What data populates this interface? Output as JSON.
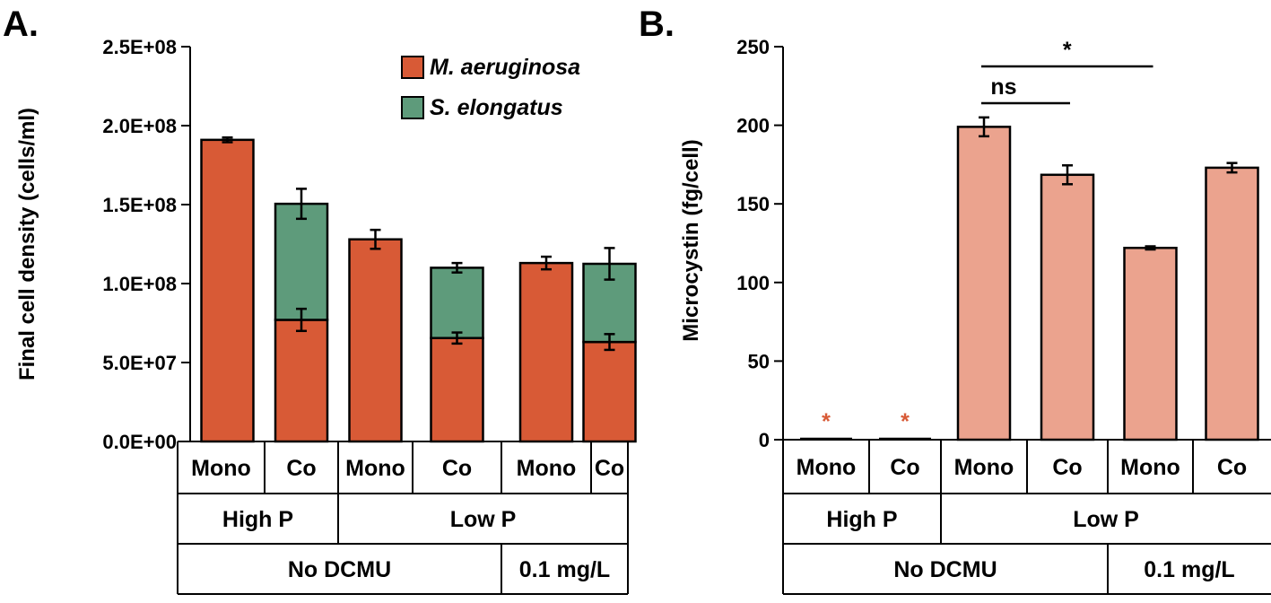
{
  "chart_data": [
    {
      "panel": "A.",
      "type": "stacked_bar",
      "ylabel": "Final cell density (cells/ml)",
      "ylim": [
        0,
        250000000
      ],
      "yticks": [
        0,
        50000000,
        100000000,
        150000000,
        200000000,
        250000000
      ],
      "ytick_labels": [
        "0.0E+00",
        "5.0E+07",
        "1.0E+08",
        "1.5E+08",
        "2.0E+08",
        "2.5E+08"
      ],
      "categories": [
        "Mono",
        "Co",
        "Mono",
        "Co",
        "Mono",
        "Co"
      ],
      "group_rows": [
        [
          {
            "label": "High P",
            "span": 2
          },
          {
            "label": "Low P",
            "span": 4
          }
        ],
        [
          {
            "label": "No DCMU",
            "span": 4
          },
          {
            "label": "0.1 mg/L",
            "span": 2
          }
        ]
      ],
      "series": [
        {
          "name": "M. aeruginosa",
          "color": "#d85a36",
          "values": [
            191000000,
            77000000,
            128000000,
            65500000,
            113000000,
            63000000
          ],
          "errors": [
            1500000,
            7000000,
            6000000,
            3500000,
            4000000,
            5000000
          ]
        },
        {
          "name": "S. elongatus",
          "color": "#5e9b7b",
          "values": [
            0,
            73500000,
            0,
            44500000,
            0,
            49500000
          ],
          "errors": [
            0,
            9500000,
            0,
            3000000,
            0,
            10000000
          ]
        }
      ]
    },
    {
      "panel": "B.",
      "type": "bar",
      "ylabel": "Microcystin (fg/cell)",
      "ylim": [
        0,
        250
      ],
      "yticks": [
        0,
        50,
        100,
        150,
        200,
        250
      ],
      "ytick_labels": [
        "0",
        "50",
        "100",
        "150",
        "200",
        "250"
      ],
      "categories": [
        "Mono",
        "Co",
        "Mono",
        "Co",
        "Mono",
        "Co"
      ],
      "group_rows": [
        [
          {
            "label": "High P",
            "span": 2
          },
          {
            "label": "Low P",
            "span": 4
          }
        ],
        [
          {
            "label": "No DCMU",
            "span": 4
          },
          {
            "label": "0.1 mg/L",
            "span": 2
          }
        ]
      ],
      "series": [
        {
          "name": "Microcystin",
          "color": "#eba38e",
          "values": [
            0,
            0,
            199,
            168.5,
            122,
            173
          ],
          "errors": [
            0,
            0,
            6,
            6,
            1,
            3
          ]
        }
      ],
      "below_detection_markers": [
        {
          "index": 0,
          "label": "*"
        },
        {
          "index": 1,
          "label": "*"
        }
      ],
      "marker_color": "#d85a36",
      "significance": [
        {
          "from": 2,
          "to": 3,
          "label": "ns"
        },
        {
          "from": 2,
          "to": 4,
          "label": "*"
        }
      ]
    }
  ]
}
